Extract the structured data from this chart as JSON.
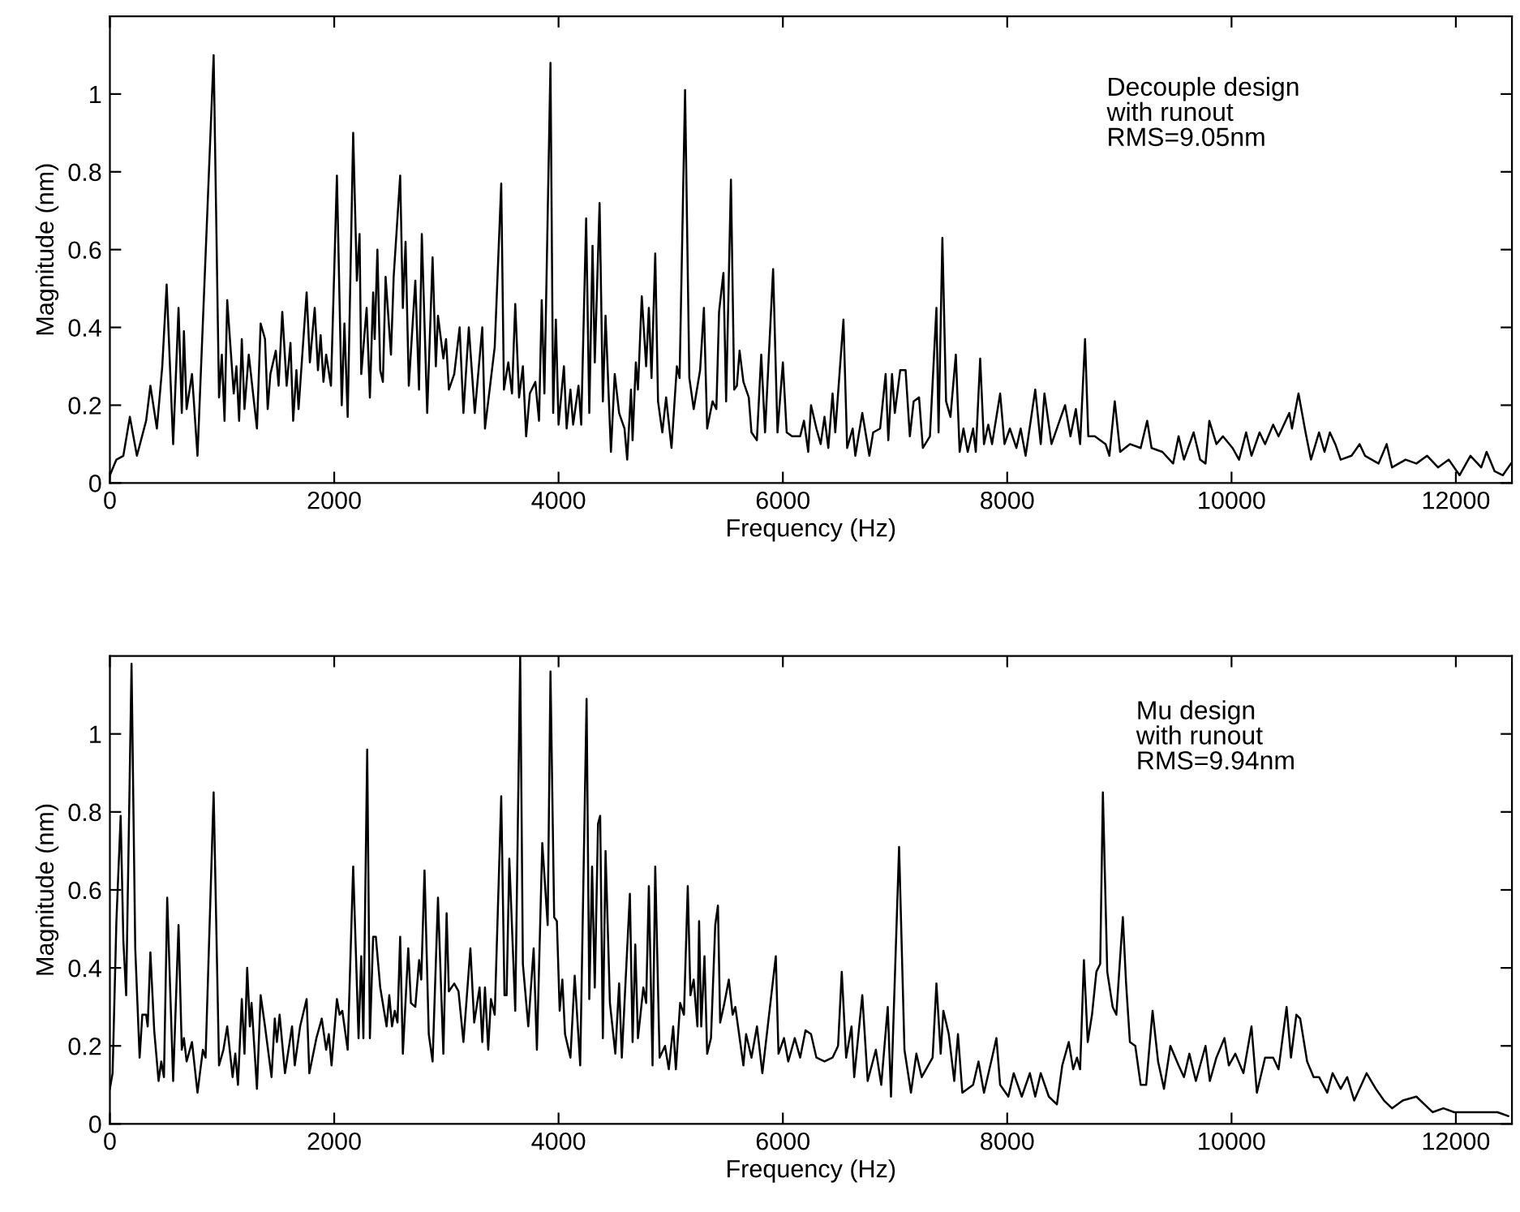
{
  "chart_data": [
    {
      "type": "line",
      "xlabel": "Frequency (Hz)",
      "ylabel": "Magnitude (nm)",
      "annotations": [
        "Decouple design\nwith runout\nRMS=9.05nm"
      ],
      "xlim": [
        0,
        12500
      ],
      "xticks": [
        0,
        2000,
        4000,
        6000,
        8000,
        10000,
        12000
      ],
      "ylim": [
        0,
        1.2
      ],
      "yticks": [
        0,
        0.2,
        0.4,
        0.6,
        0.8,
        1
      ],
      "grid": false,
      "legend": false,
      "series": [
        {
          "color": "#000000",
          "x": [
            0,
            58,
            120,
            178,
            241,
            323,
            361,
            419,
            467,
            506,
            564,
            612,
            641,
            660,
            684,
            732,
            781,
            925,
            973,
            998,
            1022,
            1046,
            1104,
            1128,
            1152,
            1176,
            1200,
            1238,
            1311,
            1344,
            1383,
            1407,
            1431,
            1479,
            1504,
            1537,
            1576,
            1610,
            1634,
            1663,
            1682,
            1754,
            1783,
            1826,
            1855,
            1879,
            1904,
            1928,
            1971,
            2024,
            2067,
            2091,
            2120,
            2169,
            2202,
            2226,
            2241,
            2289,
            2318,
            2347,
            2361,
            2385,
            2410,
            2434,
            2458,
            2506,
            2530,
            2588,
            2612,
            2636,
            2665,
            2723,
            2756,
            2781,
            2829,
            2877,
            2906,
            2925,
            2973,
            2997,
            3022,
            3070,
            3118,
            3152,
            3200,
            3253,
            3320,
            3344,
            3431,
            3489,
            3513,
            3552,
            3585,
            3614,
            3648,
            3682,
            3711,
            3744,
            3793,
            3826,
            3850,
            3874,
            3928,
            3952,
            3976,
            4000,
            4048,
            4072,
            4106,
            4130,
            4178,
            4202,
            4246,
            4274,
            4303,
            4323,
            4366,
            4395,
            4419,
            4467,
            4501,
            4540,
            4588,
            4612,
            4646,
            4660,
            4689,
            4708,
            4742,
            4781,
            4805,
            4829,
            4862,
            4887,
            4925,
            4959,
            5007,
            5055,
            5079,
            5128,
            5166,
            5205,
            5262,
            5296,
            5325,
            5373,
            5407,
            5431,
            5470,
            5494,
            5537,
            5566,
            5590,
            5614,
            5648,
            5696,
            5720,
            5768,
            5807,
            5841,
            5913,
            5952,
            6000,
            6034,
            6082,
            6154,
            6188,
            6226,
            6251,
            6299,
            6337,
            6371,
            6405,
            6443,
            6467,
            6540,
            6573,
            6622,
            6646,
            6708,
            6771,
            6805,
            6867,
            6916,
            6940,
            6973,
            6998,
            7046,
            7094,
            7132,
            7166,
            7214,
            7248,
            7311,
            7369,
            7388,
            7422,
            7455,
            7494,
            7542,
            7576,
            7610,
            7648,
            7696,
            7720,
            7759,
            7793,
            7831,
            7865,
            7937,
            7976,
            8024,
            8082,
            8120,
            8164,
            8250,
            8299,
            8332,
            8395,
            8467,
            8516,
            8564,
            8612,
            8650,
            8694,
            8723,
            8781,
            8877,
            8911,
            8959,
            9007,
            9094,
            9190,
            9248,
            9287,
            9383,
            9479,
            9528,
            9576,
            9662,
            9720,
            9768,
            9802,
            9865,
            9923,
            10009,
            10067,
            10130,
            10178,
            10250,
            10299,
            10371,
            10419,
            10515,
            10539,
            10597,
            10660,
            10708,
            10780,
            10829,
            10877,
            10925,
            10973,
            11070,
            11142,
            11190,
            11311,
            11383,
            11431,
            11552,
            11648,
            11744,
            11841,
            11937,
            12033,
            12130,
            12226,
            12274,
            12346,
            12419,
            12491
          ],
          "values": [
            0.02,
            0.06,
            0.07,
            0.17,
            0.07,
            0.16,
            0.25,
            0.14,
            0.3,
            0.51,
            0.1,
            0.45,
            0.18,
            0.39,
            0.19,
            0.28,
            0.07,
            1.1,
            0.22,
            0.33,
            0.16,
            0.47,
            0.23,
            0.3,
            0.16,
            0.37,
            0.19,
            0.33,
            0.14,
            0.41,
            0.37,
            0.19,
            0.28,
            0.34,
            0.25,
            0.44,
            0.25,
            0.36,
            0.16,
            0.29,
            0.19,
            0.49,
            0.31,
            0.45,
            0.29,
            0.38,
            0.26,
            0.33,
            0.25,
            0.79,
            0.2,
            0.41,
            0.17,
            0.9,
            0.52,
            0.64,
            0.28,
            0.45,
            0.22,
            0.49,
            0.37,
            0.6,
            0.29,
            0.26,
            0.53,
            0.33,
            0.53,
            0.79,
            0.45,
            0.62,
            0.25,
            0.52,
            0.24,
            0.64,
            0.18,
            0.58,
            0.3,
            0.43,
            0.32,
            0.37,
            0.24,
            0.28,
            0.4,
            0.18,
            0.4,
            0.18,
            0.4,
            0.14,
            0.35,
            0.77,
            0.24,
            0.31,
            0.23,
            0.46,
            0.22,
            0.3,
            0.12,
            0.23,
            0.26,
            0.16,
            0.47,
            0.23,
            1.08,
            0.18,
            0.42,
            0.15,
            0.3,
            0.14,
            0.24,
            0.15,
            0.25,
            0.15,
            0.68,
            0.18,
            0.61,
            0.31,
            0.72,
            0.21,
            0.43,
            0.08,
            0.28,
            0.18,
            0.14,
            0.06,
            0.24,
            0.11,
            0.31,
            0.24,
            0.48,
            0.3,
            0.45,
            0.27,
            0.59,
            0.21,
            0.13,
            0.22,
            0.09,
            0.3,
            0.27,
            1.01,
            0.27,
            0.19,
            0.29,
            0.45,
            0.14,
            0.21,
            0.19,
            0.44,
            0.54,
            0.21,
            0.78,
            0.24,
            0.25,
            0.34,
            0.26,
            0.22,
            0.13,
            0.11,
            0.33,
            0.13,
            0.55,
            0.13,
            0.31,
            0.13,
            0.12,
            0.12,
            0.16,
            0.08,
            0.2,
            0.14,
            0.1,
            0.17,
            0.09,
            0.23,
            0.13,
            0.42,
            0.09,
            0.14,
            0.07,
            0.18,
            0.07,
            0.13,
            0.14,
            0.28,
            0.11,
            0.28,
            0.18,
            0.29,
            0.29,
            0.12,
            0.21,
            0.22,
            0.09,
            0.12,
            0.45,
            0.13,
            0.63,
            0.21,
            0.17,
            0.33,
            0.08,
            0.14,
            0.08,
            0.14,
            0.08,
            0.32,
            0.1,
            0.15,
            0.1,
            0.23,
            0.1,
            0.14,
            0.09,
            0.14,
            0.07,
            0.24,
            0.1,
            0.23,
            0.1,
            0.16,
            0.2,
            0.12,
            0.19,
            0.1,
            0.37,
            0.12,
            0.12,
            0.1,
            0.07,
            0.21,
            0.08,
            0.1,
            0.09,
            0.16,
            0.09,
            0.08,
            0.05,
            0.12,
            0.06,
            0.13,
            0.06,
            0.05,
            0.16,
            0.1,
            0.12,
            0.09,
            0.06,
            0.13,
            0.07,
            0.13,
            0.1,
            0.15,
            0.12,
            0.18,
            0.14,
            0.23,
            0.13,
            0.06,
            0.13,
            0.08,
            0.13,
            0.1,
            0.06,
            0.07,
            0.1,
            0.07,
            0.05,
            0.1,
            0.04,
            0.06,
            0.05,
            0.07,
            0.04,
            0.06,
            0.02,
            0.07,
            0.04,
            0.08,
            0.03,
            0.02,
            0.05
          ]
        }
      ]
    },
    {
      "type": "line",
      "xlabel": "Frequency (Hz)",
      "ylabel": "Magnitude (nm)",
      "annotations": [
        "Mu design\nwith runout\nRMS=9.94nm"
      ],
      "xlim": [
        0,
        12500
      ],
      "xticks": [
        0,
        2000,
        4000,
        6000,
        8000,
        10000,
        12000
      ],
      "ylim": [
        0,
        1.2
      ],
      "yticks": [
        0,
        0.2,
        0.4,
        0.6,
        0.8,
        1
      ],
      "grid": false,
      "legend": false,
      "series": [
        {
          "color": "#000000",
          "x": [
            0,
            24,
            58,
            96,
            120,
            145,
            193,
            226,
            265,
            289,
            323,
            337,
            361,
            395,
            434,
            458,
            482,
            511,
            564,
            612,
            641,
            660,
            684,
            732,
            781,
            829,
            853,
            925,
            973,
            1012,
            1046,
            1094,
            1118,
            1142,
            1176,
            1200,
            1224,
            1248,
            1263,
            1311,
            1344,
            1383,
            1441,
            1470,
            1489,
            1513,
            1561,
            1624,
            1648,
            1696,
            1754,
            1778,
            1841,
            1889,
            1928,
            1952,
            1976,
            2024,
            2048,
            2072,
            2120,
            2169,
            2217,
            2241,
            2260,
            2294,
            2318,
            2347,
            2371,
            2410,
            2467,
            2491,
            2515,
            2540,
            2564,
            2588,
            2612,
            2660,
            2684,
            2723,
            2757,
            2776,
            2805,
            2843,
            2877,
            2925,
            2973,
            3002,
            3022,
            3070,
            3108,
            3152,
            3214,
            3248,
            3296,
            3320,
            3344,
            3373,
            3397,
            3431,
            3489,
            3518,
            3537,
            3561,
            3614,
            3658,
            3682,
            3730,
            3778,
            3807,
            3855,
            3903,
            3928,
            3961,
            3985,
            4010,
            4034,
            4058,
            4106,
            4144,
            4193,
            4250,
            4274,
            4299,
            4323,
            4352,
            4371,
            4395,
            4419,
            4458,
            4506,
            4540,
            4564,
            4636,
            4660,
            4684,
            4708,
            4756,
            4781,
            4805,
            4838,
            4862,
            4901,
            4949,
            4983,
            5022,
            5046,
            5084,
            5118,
            5152,
            5176,
            5205,
            5238,
            5253,
            5272,
            5301,
            5325,
            5359,
            5397,
            5421,
            5441,
            5479,
            5518,
            5552,
            5576,
            5648,
            5672,
            5720,
            5769,
            5817,
            5865,
            5937,
            5961,
            6010,
            6048,
            6106,
            6154,
            6202,
            6251,
            6299,
            6371,
            6443,
            6492,
            6525,
            6564,
            6612,
            6636,
            6708,
            6756,
            6829,
            6877,
            6935,
            6964,
            7036,
            7084,
            7142,
            7190,
            7238,
            7335,
            7369,
            7407,
            7431,
            7479,
            7528,
            7561,
            7600,
            7696,
            7744,
            7793,
            7865,
            7904,
            7937,
            8010,
            8058,
            8130,
            8202,
            8250,
            8299,
            8371,
            8443,
            8491,
            8549,
            8588,
            8622,
            8650,
            8684,
            8718,
            8756,
            8795,
            8829,
            8853,
            8892,
            8940,
            8973,
            9031,
            9060,
            9094,
            9142,
            9190,
            9239,
            9296,
            9345,
            9398,
            9455,
            9528,
            9576,
            9624,
            9682,
            9768,
            9807,
            9865,
            9937,
            9976,
            10034,
            10106,
            10178,
            10226,
            10299,
            10371,
            10419,
            10491,
            10530,
            10578,
            10612,
            10674,
            10732,
            10780,
            10853,
            10901,
            10973,
            11031,
            11094,
            11204,
            11286,
            11359,
            11431,
            11527,
            11648,
            11792,
            11889,
            11985,
            12130,
            12250,
            12371,
            12467
          ],
          "values": [
            0.09,
            0.13,
            0.52,
            0.79,
            0.47,
            0.33,
            1.18,
            0.45,
            0.17,
            0.28,
            0.28,
            0.25,
            0.44,
            0.24,
            0.11,
            0.16,
            0.12,
            0.58,
            0.11,
            0.51,
            0.19,
            0.22,
            0.16,
            0.21,
            0.08,
            0.19,
            0.17,
            0.85,
            0.15,
            0.19,
            0.25,
            0.12,
            0.18,
            0.1,
            0.32,
            0.18,
            0.4,
            0.25,
            0.31,
            0.09,
            0.33,
            0.25,
            0.12,
            0.27,
            0.21,
            0.28,
            0.13,
            0.25,
            0.15,
            0.25,
            0.32,
            0.13,
            0.22,
            0.27,
            0.19,
            0.23,
            0.15,
            0.32,
            0.28,
            0.29,
            0.19,
            0.66,
            0.22,
            0.43,
            0.22,
            0.96,
            0.22,
            0.48,
            0.48,
            0.35,
            0.25,
            0.33,
            0.25,
            0.29,
            0.26,
            0.48,
            0.18,
            0.45,
            0.31,
            0.3,
            0.42,
            0.37,
            0.65,
            0.23,
            0.16,
            0.58,
            0.18,
            0.54,
            0.34,
            0.36,
            0.34,
            0.21,
            0.45,
            0.26,
            0.35,
            0.21,
            0.35,
            0.19,
            0.32,
            0.28,
            0.84,
            0.33,
            0.33,
            0.68,
            0.29,
            1.2,
            0.41,
            0.25,
            0.45,
            0.19,
            0.72,
            0.51,
            1.16,
            0.53,
            0.52,
            0.29,
            0.37,
            0.23,
            0.17,
            0.38,
            0.15,
            1.09,
            0.32,
            0.66,
            0.35,
            0.77,
            0.79,
            0.22,
            0.7,
            0.31,
            0.18,
            0.36,
            0.17,
            0.59,
            0.21,
            0.46,
            0.22,
            0.35,
            0.31,
            0.61,
            0.15,
            0.66,
            0.17,
            0.2,
            0.14,
            0.25,
            0.14,
            0.31,
            0.28,
            0.61,
            0.33,
            0.37,
            0.25,
            0.52,
            0.25,
            0.43,
            0.18,
            0.22,
            0.51,
            0.56,
            0.26,
            0.31,
            0.37,
            0.28,
            0.3,
            0.15,
            0.23,
            0.17,
            0.25,
            0.13,
            0.25,
            0.43,
            0.18,
            0.22,
            0.16,
            0.22,
            0.17,
            0.24,
            0.23,
            0.17,
            0.16,
            0.17,
            0.2,
            0.39,
            0.17,
            0.25,
            0.12,
            0.33,
            0.11,
            0.19,
            0.1,
            0.3,
            0.07,
            0.71,
            0.19,
            0.08,
            0.18,
            0.12,
            0.17,
            0.36,
            0.18,
            0.29,
            0.23,
            0.11,
            0.23,
            0.08,
            0.1,
            0.16,
            0.08,
            0.17,
            0.22,
            0.1,
            0.07,
            0.13,
            0.07,
            0.13,
            0.07,
            0.13,
            0.07,
            0.05,
            0.15,
            0.21,
            0.14,
            0.17,
            0.14,
            0.42,
            0.21,
            0.28,
            0.39,
            0.41,
            0.85,
            0.39,
            0.3,
            0.28,
            0.53,
            0.36,
            0.21,
            0.2,
            0.1,
            0.1,
            0.29,
            0.16,
            0.09,
            0.2,
            0.15,
            0.12,
            0.18,
            0.11,
            0.2,
            0.11,
            0.17,
            0.22,
            0.15,
            0.18,
            0.13,
            0.25,
            0.08,
            0.17,
            0.17,
            0.14,
            0.3,
            0.17,
            0.28,
            0.27,
            0.16,
            0.12,
            0.12,
            0.08,
            0.13,
            0.09,
            0.12,
            0.06,
            0.13,
            0.09,
            0.06,
            0.04,
            0.06,
            0.07,
            0.03,
            0.04,
            0.03,
            0.03,
            0.03,
            0.03,
            0.02
          ]
        }
      ]
    }
  ]
}
